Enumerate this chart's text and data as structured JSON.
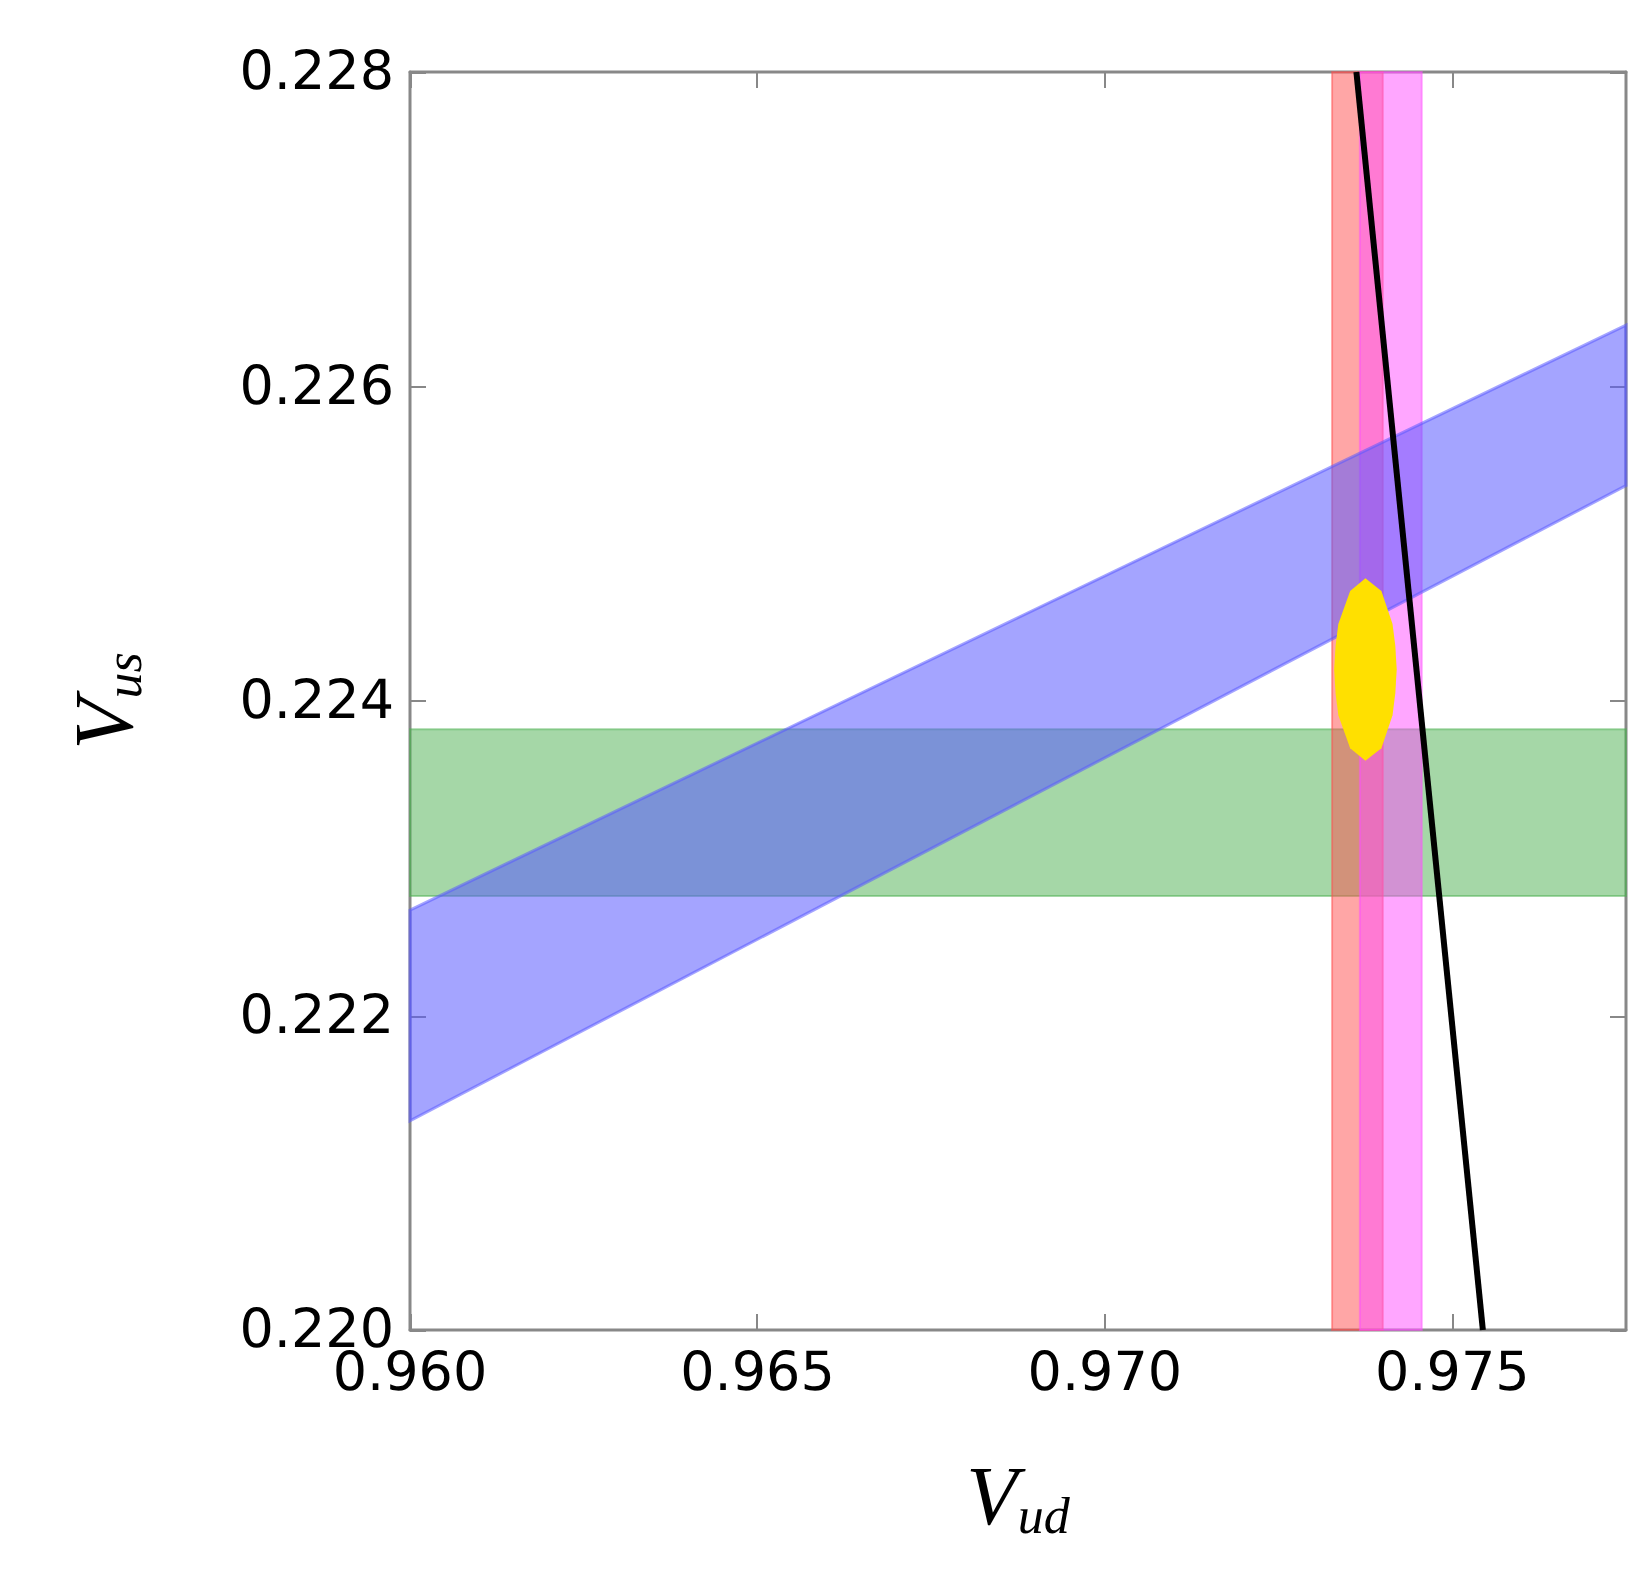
{
  "chart_data": {
    "type": "line",
    "xlabel": "V$_{ud}$",
    "ylabel": "V$_{us}$",
    "xlim": [
      0.96,
      0.9775
    ],
    "xticks": [
      {
        "value": 0.96,
        "label": "0.960"
      },
      {
        "value": 0.965,
        "label": "0.965"
      },
      {
        "value": 0.97,
        "label": "0.970"
      },
      {
        "value": 0.975,
        "label": "0.975"
      }
    ],
    "ylim": [
      0.22,
      0.228
    ],
    "yticks": [
      {
        "value": 0.22,
        "label": "0.220"
      },
      {
        "value": 0.222,
        "label": "0.222"
      },
      {
        "value": 0.224,
        "label": "0.224"
      },
      {
        "value": 0.226,
        "label": "0.226"
      },
      {
        "value": 0.228,
        "label": "0.228"
      }
    ],
    "bands": [
      {
        "axis": "y",
        "from": 0.22276,
        "to": 0.22382,
        "color": "#4caf50"
      },
      {
        "axis": "x",
        "from": 0.97327,
        "to": 0.974,
        "color": "#ff4d4d"
      },
      {
        "axis": "x",
        "from": 0.97367,
        "to": 0.97456,
        "color": "#ff4dff"
      }
    ],
    "series": [
      {
        "type": "area",
        "color": "#5a5aff",
        "x": [
          0.96,
          0.9775,
          0.9775,
          0.96
        ],
        "values": [
          0.22267,
          0.22639,
          0.22537,
          0.22133
        ]
      },
      {
        "type": "area",
        "color": "#ffe000",
        "x": [
          0.9733,
          0.97332,
          0.97336,
          0.97353,
          0.97375,
          0.97398,
          0.97414,
          0.97418,
          0.9742,
          0.97418,
          0.97414,
          0.97398,
          0.97375,
          0.97353,
          0.97336,
          0.97332
        ],
        "values": [
          0.2242,
          0.22435,
          0.22449,
          0.2247,
          0.22478,
          0.2247,
          0.22449,
          0.22435,
          0.2242,
          0.22405,
          0.22391,
          0.2237,
          0.22362,
          0.2237,
          0.22391,
          0.22405
        ]
      },
      {
        "color": "#000000",
        "x": [
          0.97362,
          0.97544
        ],
        "values": [
          0.228,
          0.22
        ]
      }
    ]
  }
}
